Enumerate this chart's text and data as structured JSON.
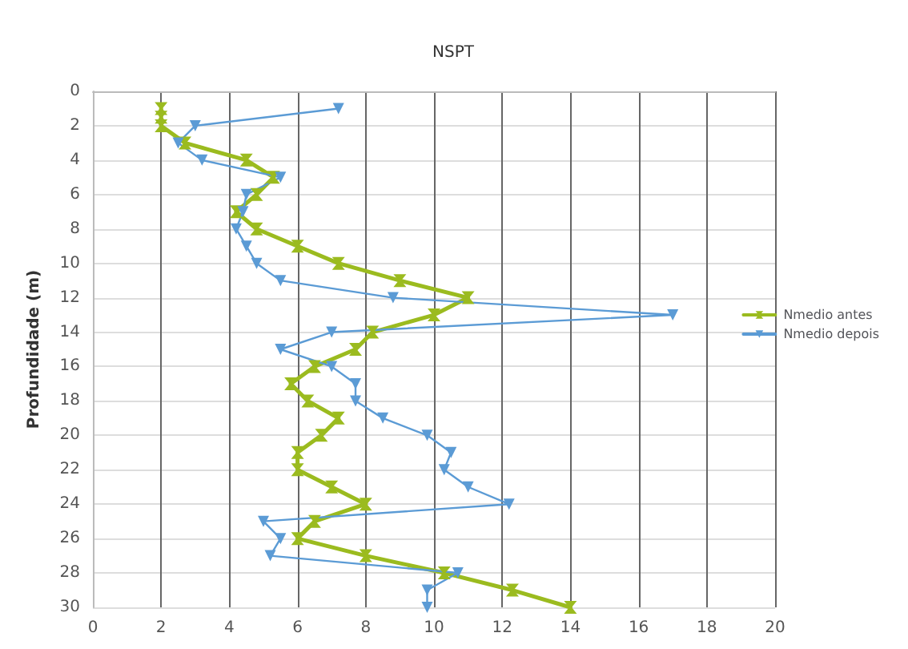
{
  "chart_data": {
    "type": "line",
    "title": "NSPT",
    "ylabel": "Profundidade (m)",
    "xlim": [
      0,
      20
    ],
    "xticks": [
      0,
      2,
      4,
      6,
      8,
      10,
      12,
      14,
      16,
      18,
      20
    ],
    "ylim": [
      30,
      0
    ],
    "yticks": [
      0,
      2,
      4,
      6,
      8,
      10,
      12,
      14,
      16,
      18,
      20,
      22,
      24,
      26,
      28,
      30
    ],
    "grid": true,
    "legend": "right",
    "line_style": "solid",
    "series": [
      {
        "name": "Nmedio antes",
        "color": "#9bbb1f",
        "marker": "cross",
        "x": [
          2,
          2,
          2,
          2.7,
          4.5,
          5.3,
          4.8,
          4.2,
          4.8,
          6,
          7.2,
          9,
          11,
          10,
          8.2,
          7.7,
          6.5,
          5.8,
          6.3,
          7.2,
          6.7,
          6,
          6,
          7,
          8,
          6.5,
          6,
          8,
          10.3,
          12.3,
          14
        ],
        "values": [
          1,
          1.5,
          2,
          3,
          4,
          5,
          6,
          7,
          8,
          9,
          10,
          11,
          12,
          13,
          14,
          15,
          16,
          17,
          18,
          19,
          20,
          21,
          22,
          23,
          24,
          25,
          26,
          27,
          28,
          29,
          30
        ]
      },
      {
        "name": "Nmedio depois",
        "color": "#5b9bd5",
        "marker": "triangle",
        "x": [
          7.2,
          3,
          2.5,
          3.2,
          5.5,
          4.5,
          4.4,
          4.2,
          4.5,
          4.8,
          5.5,
          8.8,
          17,
          7,
          5.5,
          7,
          7.7,
          7.7,
          8.5,
          9.8,
          10.5,
          10.3,
          11,
          12.2,
          5,
          5.5,
          5.2,
          10.7,
          9.8,
          9.8
        ],
        "values": [
          1,
          2,
          3,
          4,
          5,
          6,
          7,
          8,
          9,
          10,
          11,
          12,
          13,
          14,
          15,
          16,
          17,
          18,
          19,
          20,
          21,
          22,
          23,
          24,
          25,
          26,
          27,
          28,
          29,
          30
        ]
      }
    ]
  }
}
